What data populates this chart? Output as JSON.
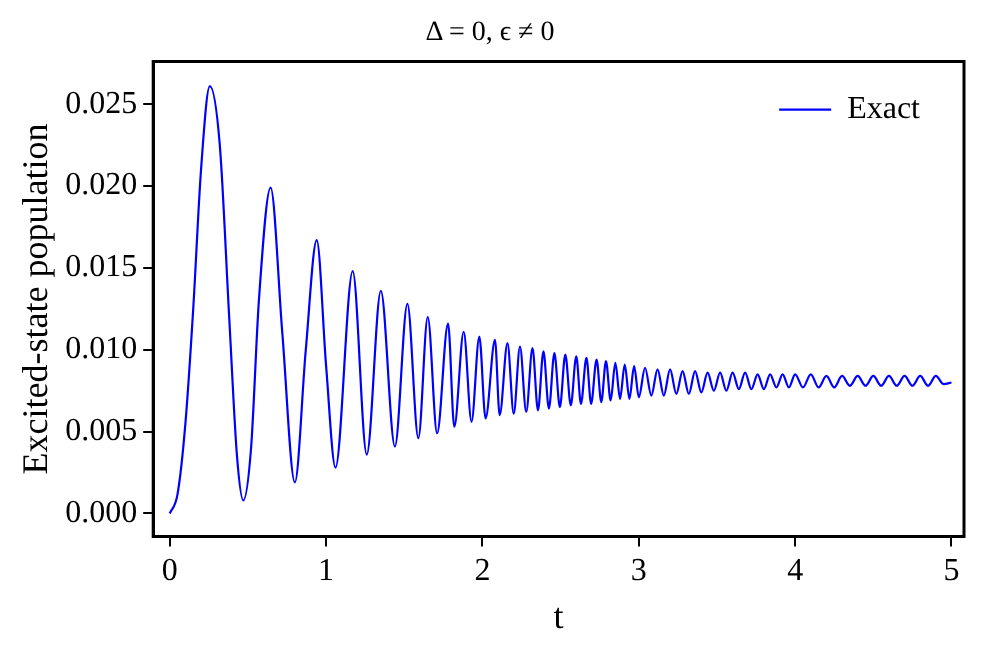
{
  "chart_data": {
    "type": "line",
    "title": "Δ = 0, ϵ ≠ 0",
    "xlabel": "t",
    "ylabel": "Excited-state population",
    "xlim": [
      -0.106,
      5.08
    ],
    "xticks": [
      0,
      1,
      2,
      3,
      4,
      5
    ],
    "ylim": [
      -0.0014,
      0.0276
    ],
    "yticks": [
      {
        "value": 0,
        "label": "0.000"
      },
      {
        "value": 0.005,
        "label": "0.005"
      },
      {
        "value": 0.01,
        "label": "0.010"
      },
      {
        "value": 0.015,
        "label": "0.015"
      },
      {
        "value": 0.02,
        "label": "0.020"
      },
      {
        "value": 0.025,
        "label": "0.025"
      }
    ],
    "grid": false,
    "legend": "top right",
    "marker": "none",
    "line_style": "solid",
    "series": [
      {
        "name": "Exact",
        "color": "#0000ff",
        "x": [
          0,
          0.05,
          0.1,
          0.15,
          0.2,
          0.256,
          0.32,
          0.38,
          0.43,
          0.47,
          0.52,
          0.57,
          0.645,
          0.72,
          0.8,
          0.87,
          0.94,
          1.0,
          1.06,
          1.17,
          1.26,
          1.35,
          1.44,
          1.52,
          1.59,
          1.65,
          1.71,
          1.78,
          1.82,
          1.88,
          1.93,
          1.98,
          2.02,
          2.08,
          2.11,
          2.16,
          2.2,
          2.24,
          2.28,
          2.32,
          2.355,
          2.39,
          2.425,
          2.46,
          2.495,
          2.53,
          2.565,
          2.6,
          2.63,
          2.665,
          2.695,
          2.73,
          2.76,
          2.79,
          2.82,
          2.85,
          2.88,
          2.91,
          2.94,
          2.97,
          3.0,
          3.04,
          3.08,
          3.12,
          3.16,
          3.2,
          3.24,
          3.28,
          3.32,
          3.36,
          3.4,
          3.44,
          3.48,
          3.52,
          3.56,
          3.6,
          3.64,
          3.68,
          3.72,
          3.76,
          3.8,
          3.84,
          3.88,
          3.92,
          3.96,
          4.0,
          4.05,
          4.1,
          4.15,
          4.2,
          4.25,
          4.3,
          4.35,
          4.4,
          4.45,
          4.5,
          4.55,
          4.6,
          4.65,
          4.7,
          4.75,
          4.8,
          4.85,
          4.9,
          4.95,
          5.0
        ],
        "values": [
          0,
          0.0012,
          0.0055,
          0.0125,
          0.021,
          0.0261,
          0.0225,
          0.012,
          0.0035,
          0.0008,
          0.004,
          0.013,
          0.0199,
          0.011,
          0.0019,
          0.01,
          0.0167,
          0.009,
          0.0028,
          0.0148,
          0.0036,
          0.0136,
          0.0041,
          0.0128,
          0.0046,
          0.012,
          0.0049,
          0.0116,
          0.0053,
          0.0111,
          0.0056,
          0.0108,
          0.0058,
          0.0106,
          0.006,
          0.0104,
          0.0061,
          0.0102,
          0.0062,
          0.0101,
          0.0063,
          0.0099,
          0.0064,
          0.0098,
          0.0065,
          0.0097,
          0.0066,
          0.0096,
          0.0067,
          0.0095,
          0.0067,
          0.0094,
          0.0068,
          0.0093,
          0.0069,
          0.0092,
          0.007,
          0.0091,
          0.007,
          0.009,
          0.0071,
          0.0089,
          0.0072,
          0.0088,
          0.0072,
          0.0088,
          0.0073,
          0.0087,
          0.0073,
          0.0087,
          0.0074,
          0.0086,
          0.0075,
          0.0086,
          0.0075,
          0.0086,
          0.0076,
          0.0086,
          0.0076,
          0.0085,
          0.0076,
          0.0085,
          0.0077,
          0.0085,
          0.0077,
          0.0085,
          0.0077,
          0.0085,
          0.0077,
          0.0084,
          0.0077,
          0.0084,
          0.0078,
          0.0084,
          0.0078,
          0.0084,
          0.0078,
          0.0084,
          0.0078,
          0.0084,
          0.0078,
          0.0084,
          0.0078,
          0.0084,
          0.0079,
          0.008
        ]
      }
    ]
  }
}
